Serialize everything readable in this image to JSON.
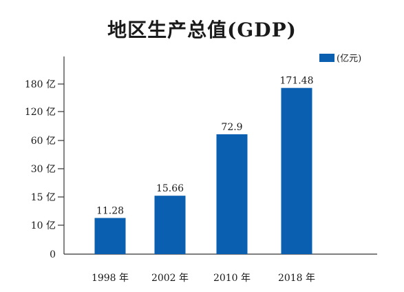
{
  "chart_data": {
    "type": "bar",
    "title": "地区生产总值(GDP)",
    "legend_label": "(亿元)",
    "legend_position": "top-right",
    "color": "#0a5fb0",
    "categories": [
      "1998 年",
      "2002 年",
      "2010 年",
      "2018 年"
    ],
    "values": [
      11.28,
      15.66,
      72.9,
      171.48
    ],
    "value_labels": [
      "11.28",
      "15.66",
      "72.9",
      "171.48"
    ],
    "y_ticks": [
      {
        "label": "0",
        "value": 0
      },
      {
        "label": "10 亿",
        "value": 10
      },
      {
        "label": "15 亿",
        "value": 15
      },
      {
        "label": "30 亿",
        "value": 30
      },
      {
        "label": "60 亿",
        "value": 60
      },
      {
        "label": "120 亿",
        "value": 120
      },
      {
        "label": "180 亿",
        "value": 180
      }
    ],
    "y_scale": "non-linear (ticks equally spaced)",
    "ylim": [
      0,
      180
    ],
    "grid": false
  }
}
